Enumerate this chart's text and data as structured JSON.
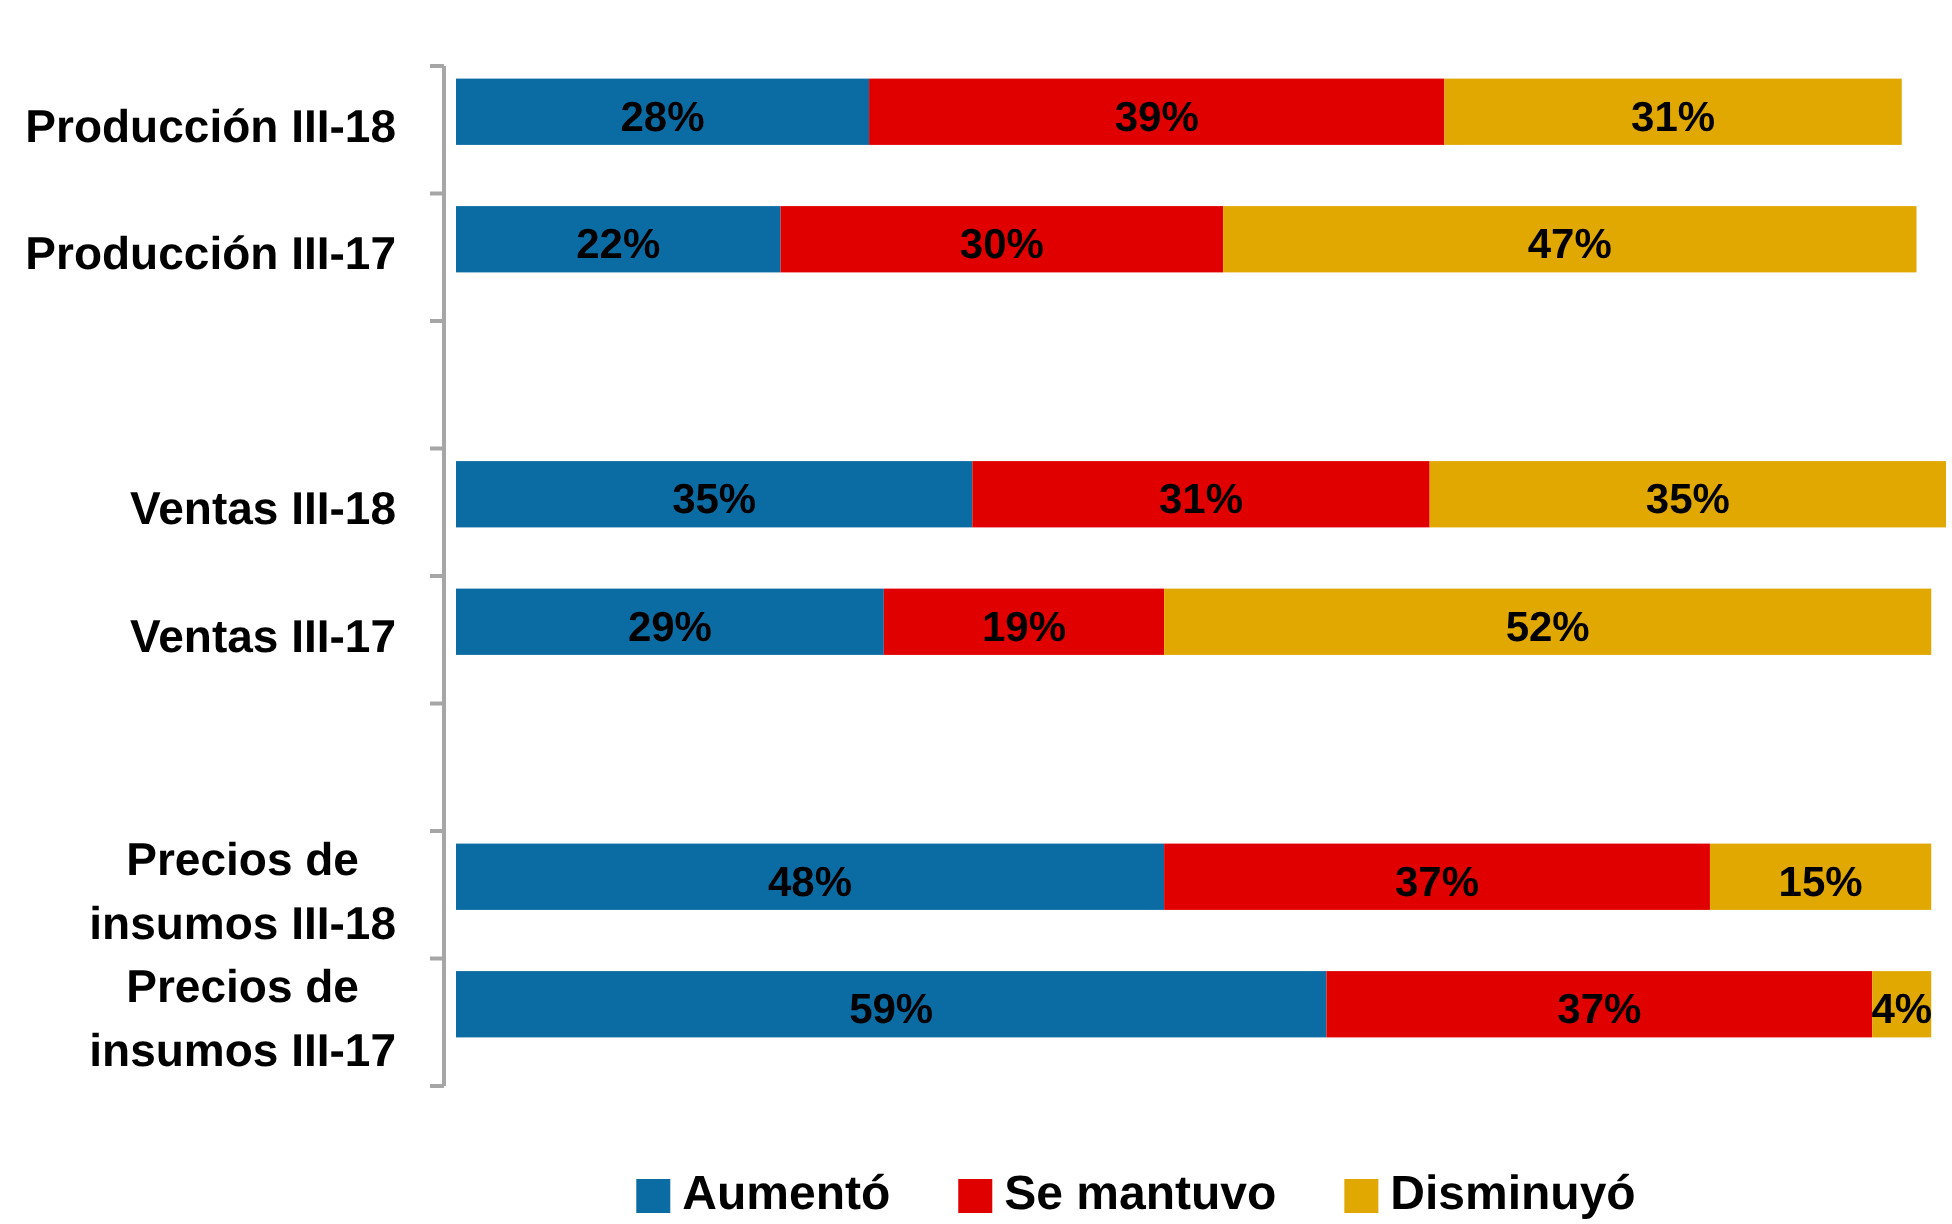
{
  "chart_data": {
    "type": "bar",
    "orientation": "horizontal",
    "stacked": true,
    "legend": "bottom",
    "categories": [
      "Producción III-18",
      "Producción III-17",
      null,
      "Ventas III-18",
      "Ventas III-17",
      null,
      "Precios de insumos III-18",
      "Precios de insumos III-17"
    ],
    "series": [
      {
        "name": "Aumentó",
        "color": "#0b6ba3",
        "values": [
          28,
          22,
          null,
          35,
          29,
          null,
          48,
          59
        ],
        "value_labels": [
          "28%",
          "22%",
          null,
          "35%",
          "29%",
          null,
          "48%",
          "59%"
        ]
      },
      {
        "name": "Se mantuvo",
        "color": "#e00000",
        "values": [
          39,
          30,
          null,
          31,
          19,
          null,
          37,
          37
        ],
        "value_labels": [
          "39%",
          "30%",
          null,
          "31%",
          "19%",
          null,
          "37%",
          "37%"
        ]
      },
      {
        "name": "Disminuyó",
        "color": "#e0a800",
        "values": [
          31,
          47,
          null,
          35,
          52,
          null,
          15,
          4
        ],
        "value_labels": [
          "31%",
          "47%",
          null,
          "35%",
          "52%",
          null,
          "15%",
          "4%"
        ]
      }
    ]
  }
}
